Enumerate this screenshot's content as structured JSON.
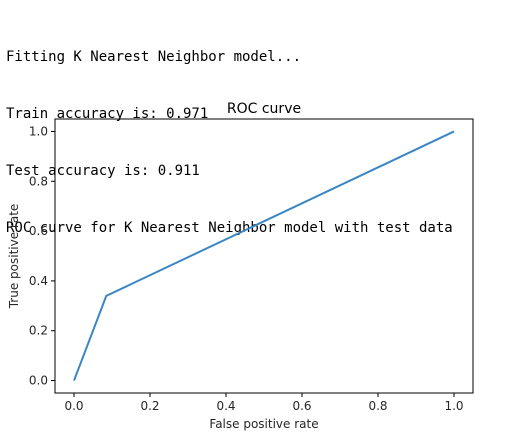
{
  "console": {
    "lines": [
      "Fitting K Nearest Neighbor model...",
      "Train accuracy is: 0.971",
      "Test accuracy is: 0.911",
      "ROC curve for K Nearest Neighbor model with test data"
    ]
  },
  "chart_data": {
    "type": "line",
    "title": "ROC curve",
    "xlabel": "False positive rate",
    "ylabel": "True positive rate",
    "xlim": [
      -0.05,
      1.05
    ],
    "ylim": [
      -0.05,
      1.05
    ],
    "xticks": [
      0.0,
      0.2,
      0.4,
      0.6,
      0.8,
      1.0
    ],
    "xtick_labels": [
      "0.0",
      "0.2",
      "0.4",
      "0.6",
      "0.8",
      "1.0"
    ],
    "yticks": [
      0.0,
      0.2,
      0.4,
      0.6,
      0.8,
      1.0
    ],
    "ytick_labels": [
      "0.0",
      "0.2",
      "0.4",
      "0.6",
      "0.8",
      "1.0"
    ],
    "grid": false,
    "series": [
      {
        "color": "#3a86c4",
        "x": [
          0.0,
          0.085,
          1.0
        ],
        "y": [
          0.0,
          0.34,
          1.0
        ]
      }
    ]
  }
}
